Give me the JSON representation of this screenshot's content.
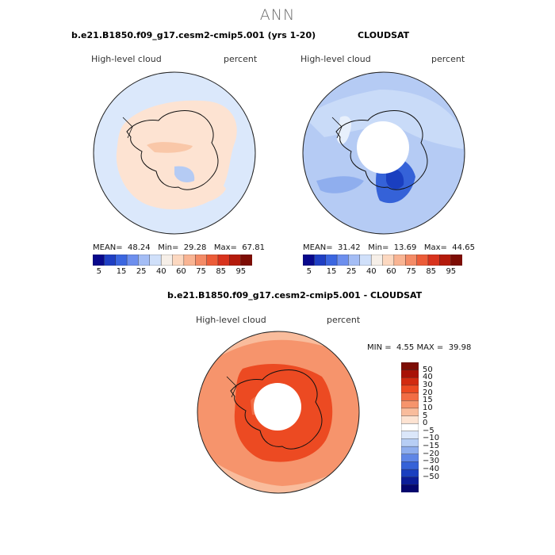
{
  "page": {
    "title": "ANN"
  },
  "panels": [
    {
      "title": "b.e21.B1850.f09_g17.cesm2-cmip5.001 (yrs 1-20)",
      "variable": "High-level cloud",
      "units": "percent",
      "stats": {
        "mean_label": "MEAN=",
        "mean": "48.24",
        "min_label": "Min=",
        "min": "29.28",
        "max_label": "Max=",
        "max": "67.81"
      },
      "colorbar_ticks": [
        "5",
        "15",
        "25",
        "40",
        "60",
        "75",
        "85",
        "95"
      ]
    },
    {
      "title": "CLOUDSAT",
      "variable": "High-level cloud",
      "units": "percent",
      "stats": {
        "mean_label": "MEAN=",
        "mean": "31.42",
        "min_label": "Min=",
        "min": "13.69",
        "max_label": "Max=",
        "max": "44.65"
      },
      "colorbar_ticks": [
        "5",
        "15",
        "25",
        "40",
        "60",
        "75",
        "85",
        "95"
      ]
    },
    {
      "title": "b.e21.B1850.f09_g17.cesm2-cmip5.001 - CLOUDSAT",
      "variable": "High-level cloud",
      "units": "percent",
      "stats": {
        "min_label": "MIN =",
        "min": "4.55",
        "max_label": "MAX =",
        "max": "39.98"
      },
      "colorbar_ticks": [
        "50",
        "40",
        "30",
        "20",
        "15",
        "10",
        "5",
        "0",
        "−5",
        "−10",
        "−15",
        "−20",
        "−30",
        "−40",
        "−50"
      ]
    }
  ],
  "colors": {
    "abs_scale": [
      "#08088c",
      "#1f3fc4",
      "#3b66e0",
      "#6d8fee",
      "#a4bdf5",
      "#d0e0fa",
      "#f6efe8",
      "#fcd8c0",
      "#f9b493",
      "#f48b66",
      "#ec5c38",
      "#d8331d",
      "#b41a0b",
      "#7d0d05"
    ],
    "diff_scale": [
      "#7d0d05",
      "#a81207",
      "#d22a10",
      "#ec4a22",
      "#f26d45",
      "#f6946c",
      "#f9bc9c",
      "#fde3d2",
      "#ffffff",
      "#dbe7fa",
      "#b7cef5",
      "#8faeee",
      "#5f86e6",
      "#3562d8",
      "#1a3fc0",
      "#0c1d98",
      "#05066e"
    ],
    "antarctica_cells_a": "#fde3d2",
    "ocean_a": "#dbe8fb",
    "ocean_b": "#b5cbf4",
    "diff_ring": "#f5987a",
    "coast": "#111111"
  }
}
